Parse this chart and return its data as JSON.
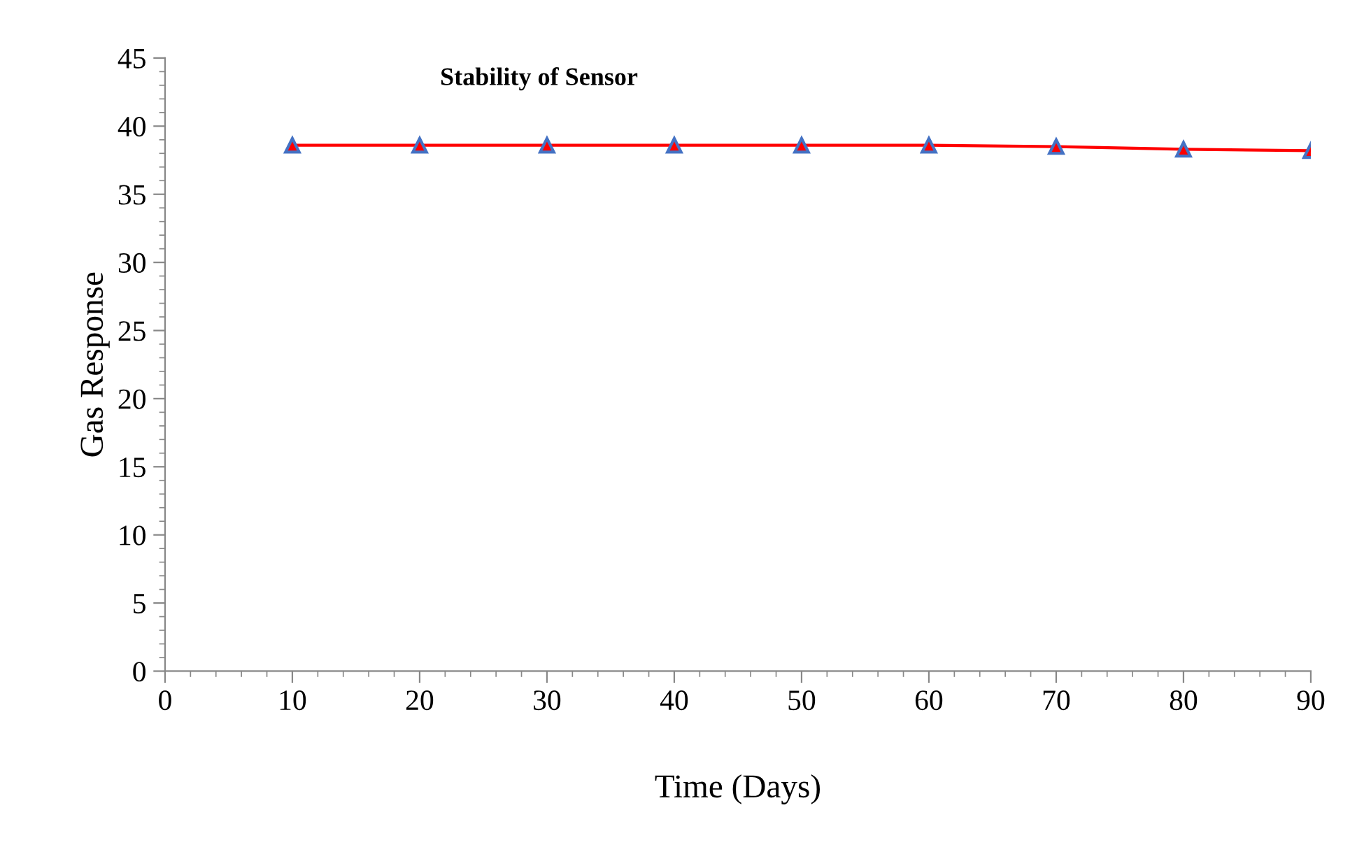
{
  "chart_data": {
    "type": "line",
    "title": "Stability of Sensor",
    "xlabel": "Time (Days)",
    "ylabel": "Gas Response",
    "x": [
      10,
      20,
      30,
      40,
      50,
      60,
      70,
      80,
      90
    ],
    "series": [
      {
        "color": "#ff0000",
        "values": [
          38.6,
          38.6,
          38.6,
          38.6,
          38.6,
          38.6,
          38.5,
          38.3,
          38.2
        ]
      }
    ],
    "xlim": [
      0,
      90
    ],
    "xticks": [
      0,
      10,
      20,
      30,
      40,
      50,
      60,
      70,
      80,
      90
    ],
    "ylim": [
      0,
      45
    ],
    "yticks": [
      0,
      5,
      10,
      15,
      20,
      25,
      30,
      35,
      40,
      45
    ],
    "marker": "triangle",
    "line_style": "solid",
    "grid": false,
    "legend": false
  }
}
